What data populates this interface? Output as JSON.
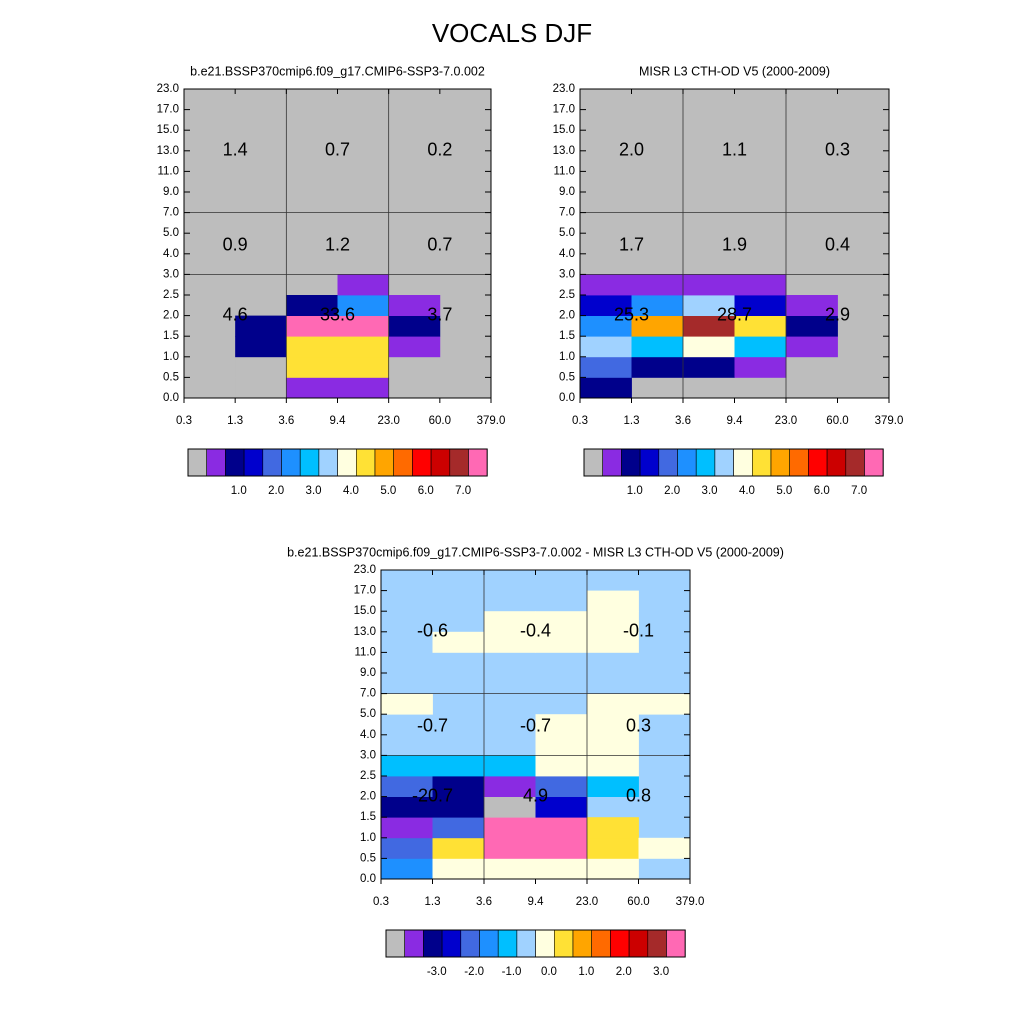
{
  "figure": {
    "title": "VOCALS DJF"
  },
  "palette": [
    "#bdbdbd",
    "#8a2be2",
    "#00008b",
    "#0000cd",
    "#4169e1",
    "#1e90ff",
    "#00bfff",
    "#a0d2ff",
    "#ffffe0",
    "#ffe135",
    "#ffa500",
    "#ff6a00",
    "#ff0000",
    "#cc0000",
    "#a52a2a",
    "#ff69b4"
  ],
  "chart_data": [
    {
      "type": "heatmap",
      "title": "b.e21.BSSP370cmip6.f09_g17.CMIP6-SSP3-7.0.002",
      "x_tick_labels": [
        "0.3",
        "1.3",
        "3.6",
        "9.4",
        "23.0",
        "60.0",
        "379.0"
      ],
      "y_tick_labels": [
        "0.0",
        "0.5",
        "1.0",
        "1.5",
        "2.0",
        "2.5",
        "3.0",
        "4.0",
        "5.0",
        "7.0",
        "9.0",
        "11.0",
        "13.0",
        "15.0",
        "17.0",
        "23.0"
      ],
      "colorbar_labels": [
        "1.0",
        "2.0",
        "3.0",
        "4.0",
        "5.0",
        "6.0",
        "7.0"
      ],
      "grid_x_boundaries": [
        "1.3",
        "3.6",
        "9.4",
        "23.0",
        "60.0"
      ],
      "grid_y_boundaries": [
        "3.0",
        "7.0"
      ],
      "grid_color": "black",
      "cells": [
        {
          "x": 1,
          "y": 0,
          "c": 0
        },
        {
          "x": 1,
          "y": 1,
          "c": 0
        },
        {
          "x": 1,
          "y": 2,
          "c": 2
        },
        {
          "x": 1,
          "y": 3,
          "c": 2
        },
        {
          "x": 2,
          "y": 0,
          "c": 1
        },
        {
          "x": 2,
          "y": 1,
          "c": 9
        },
        {
          "x": 2,
          "y": 2,
          "c": 9
        },
        {
          "x": 2,
          "y": 3,
          "c": 15
        },
        {
          "x": 2,
          "y": 4,
          "c": 2
        },
        {
          "x": 3,
          "y": 0,
          "c": 1
        },
        {
          "x": 3,
          "y": 1,
          "c": 9
        },
        {
          "x": 3,
          "y": 2,
          "c": 9
        },
        {
          "x": 3,
          "y": 3,
          "c": 15
        },
        {
          "x": 3,
          "y": 4,
          "c": 5
        },
        {
          "x": 3,
          "y": 5,
          "c": 1
        },
        {
          "x": 4,
          "y": 2,
          "c": 1
        },
        {
          "x": 4,
          "y": 3,
          "c": 2
        },
        {
          "x": 4,
          "y": 4,
          "c": 1
        }
      ],
      "sums": [
        {
          "label": "1.4",
          "xc": 1,
          "yr": 2
        },
        {
          "label": "0.7",
          "xc": 3,
          "yr": 2
        },
        {
          "label": "0.2",
          "xc": 5,
          "yr": 2
        },
        {
          "label": "0.9",
          "xc": 1,
          "yr": 1
        },
        {
          "label": "1.2",
          "xc": 3,
          "yr": 1
        },
        {
          "label": "0.7",
          "xc": 5,
          "yr": 1
        },
        {
          "label": "4.6",
          "xc": 1,
          "yr": 0
        },
        {
          "label": "33.6",
          "xc": 3,
          "yr": 0
        },
        {
          "label": "3.7",
          "xc": 5,
          "yr": 0
        }
      ]
    },
    {
      "type": "heatmap",
      "title": "MISR L3 CTH-OD V5 (2000-2009)",
      "x_tick_labels": [
        "0.3",
        "1.3",
        "3.6",
        "9.4",
        "23.0",
        "60.0",
        "379.0"
      ],
      "y_tick_labels": [
        "0.0",
        "0.5",
        "1.0",
        "1.5",
        "2.0",
        "2.5",
        "3.0",
        "4.0",
        "5.0",
        "7.0",
        "9.0",
        "11.0",
        "13.0",
        "15.0",
        "17.0",
        "23.0"
      ],
      "colorbar_labels": [
        "1.0",
        "2.0",
        "3.0",
        "4.0",
        "5.0",
        "6.0",
        "7.0"
      ],
      "grid_x_boundaries": [
        "1.3",
        "3.6",
        "9.4",
        "23.0",
        "60.0"
      ],
      "grid_y_boundaries": [
        "3.0",
        "7.0"
      ],
      "grid_color": "black",
      "cells": [
        {
          "x": 0,
          "y": 0,
          "c": 2
        },
        {
          "x": 0,
          "y": 1,
          "c": 4
        },
        {
          "x": 0,
          "y": 2,
          "c": 7
        },
        {
          "x": 0,
          "y": 3,
          "c": 5
        },
        {
          "x": 0,
          "y": 4,
          "c": 3
        },
        {
          "x": 0,
          "y": 5,
          "c": 1
        },
        {
          "x": 1,
          "y": 1,
          "c": 2
        },
        {
          "x": 1,
          "y": 2,
          "c": 6
        },
        {
          "x": 1,
          "y": 3,
          "c": 10
        },
        {
          "x": 1,
          "y": 4,
          "c": 5
        },
        {
          "x": 1,
          "y": 5,
          "c": 1
        },
        {
          "x": 2,
          "y": 1,
          "c": 2
        },
        {
          "x": 2,
          "y": 2,
          "c": 8
        },
        {
          "x": 2,
          "y": 3,
          "c": 14
        },
        {
          "x": 2,
          "y": 4,
          "c": 7
        },
        {
          "x": 2,
          "y": 5,
          "c": 1
        },
        {
          "x": 3,
          "y": 1,
          "c": 1
        },
        {
          "x": 3,
          "y": 2,
          "c": 6
        },
        {
          "x": 3,
          "y": 3,
          "c": 9
        },
        {
          "x": 3,
          "y": 4,
          "c": 3
        },
        {
          "x": 3,
          "y": 5,
          "c": 1
        },
        {
          "x": 4,
          "y": 2,
          "c": 1
        },
        {
          "x": 4,
          "y": 3,
          "c": 2
        },
        {
          "x": 4,
          "y": 4,
          "c": 1
        }
      ],
      "sums": [
        {
          "label": "2.0",
          "xc": 1,
          "yr": 2
        },
        {
          "label": "1.1",
          "xc": 3,
          "yr": 2
        },
        {
          "label": "0.3",
          "xc": 5,
          "yr": 2
        },
        {
          "label": "1.7",
          "xc": 1,
          "yr": 1
        },
        {
          "label": "1.9",
          "xc": 3,
          "yr": 1
        },
        {
          "label": "0.4",
          "xc": 5,
          "yr": 1
        },
        {
          "label": "25.3",
          "xc": 1,
          "yr": 0
        },
        {
          "label": "28.7",
          "xc": 3,
          "yr": 0
        },
        {
          "label": "2.9",
          "xc": 5,
          "yr": 0
        }
      ]
    },
    {
      "type": "heatmap",
      "title": "b.e21.BSSP370cmip6.f09_g17.CMIP6-SSP3-7.0.002 - MISR L3 CTH-OD V5 (2000-2009)",
      "x_tick_labels": [
        "0.3",
        "1.3",
        "3.6",
        "9.4",
        "23.0",
        "60.0",
        "379.0"
      ],
      "y_tick_labels": [
        "0.0",
        "0.5",
        "1.0",
        "1.5",
        "2.0",
        "2.5",
        "3.0",
        "4.0",
        "5.0",
        "7.0",
        "9.0",
        "11.0",
        "13.0",
        "15.0",
        "17.0",
        "23.0"
      ],
      "colorbar_labels": [
        "-3.0",
        "-2.0",
        "-1.0",
        "0.0",
        "1.0",
        "2.0",
        "3.0"
      ],
      "grid_x_boundaries": [
        "1.3",
        "3.6",
        "9.4",
        "23.0",
        "60.0"
      ],
      "grid_y_boundaries": [
        "3.0",
        "7.0"
      ],
      "grid_color": "black",
      "background_color_index": 7,
      "cells": [
        {
          "x": 0,
          "y": 0,
          "c": 5
        },
        {
          "x": 0,
          "y": 1,
          "c": 4
        },
        {
          "x": 0,
          "y": 2,
          "c": 1
        },
        {
          "x": 0,
          "y": 3,
          "c": 2
        },
        {
          "x": 0,
          "y": 4,
          "c": 4
        },
        {
          "x": 0,
          "y": 5,
          "c": 6
        },
        {
          "x": 0,
          "y": 8,
          "c": 8
        },
        {
          "x": 1,
          "y": 0,
          "c": 8
        },
        {
          "x": 1,
          "y": 1,
          "c": 9
        },
        {
          "x": 1,
          "y": 2,
          "c": 4
        },
        {
          "x": 1,
          "y": 3,
          "c": 2
        },
        {
          "x": 1,
          "y": 4,
          "c": 2
        },
        {
          "x": 1,
          "y": 5,
          "c": 6
        },
        {
          "x": 1,
          "y": 11,
          "c": 8
        },
        {
          "x": 2,
          "y": 0,
          "c": 8
        },
        {
          "x": 2,
          "y": 1,
          "c": 15
        },
        {
          "x": 2,
          "y": 2,
          "c": 15
        },
        {
          "x": 2,
          "y": 3,
          "c": 0
        },
        {
          "x": 2,
          "y": 4,
          "c": 1
        },
        {
          "x": 2,
          "y": 5,
          "c": 6
        },
        {
          "x": 2,
          "y": 11,
          "c": 8
        },
        {
          "x": 2,
          "y": 12,
          "c": 8
        },
        {
          "x": 3,
          "y": 0,
          "c": 8
        },
        {
          "x": 3,
          "y": 1,
          "c": 15
        },
        {
          "x": 3,
          "y": 2,
          "c": 15
        },
        {
          "x": 3,
          "y": 3,
          "c": 3
        },
        {
          "x": 3,
          "y": 4,
          "c": 4
        },
        {
          "x": 3,
          "y": 5,
          "c": 8
        },
        {
          "x": 3,
          "y": 6,
          "c": 8
        },
        {
          "x": 3,
          "y": 7,
          "c": 8
        },
        {
          "x": 3,
          "y": 11,
          "c": 8
        },
        {
          "x": 3,
          "y": 12,
          "c": 8
        },
        {
          "x": 4,
          "y": 0,
          "c": 8
        },
        {
          "x": 4,
          "y": 1,
          "c": 9
        },
        {
          "x": 4,
          "y": 2,
          "c": 9
        },
        {
          "x": 4,
          "y": 4,
          "c": 6
        },
        {
          "x": 4,
          "y": 5,
          "c": 8
        },
        {
          "x": 4,
          "y": 6,
          "c": 8
        },
        {
          "x": 4,
          "y": 7,
          "c": 8
        },
        {
          "x": 4,
          "y": 8,
          "c": 8
        },
        {
          "x": 4,
          "y": 11,
          "c": 8
        },
        {
          "x": 4,
          "y": 12,
          "c": 8
        },
        {
          "x": 4,
          "y": 13,
          "c": 8
        },
        {
          "x": 5,
          "y": 1,
          "c": 8
        },
        {
          "x": 5,
          "y": 8,
          "c": 8
        }
      ],
      "sums": [
        {
          "label": "-0.6",
          "xc": 1,
          "yr": 2
        },
        {
          "label": "-0.4",
          "xc": 3,
          "yr": 2
        },
        {
          "label": "-0.1",
          "xc": 5,
          "yr": 2
        },
        {
          "label": "-0.7",
          "xc": 1,
          "yr": 1
        },
        {
          "label": "-0.7",
          "xc": 3,
          "yr": 1
        },
        {
          "label": "0.3",
          "xc": 5,
          "yr": 1
        },
        {
          "label": "-20.7",
          "xc": 1,
          "yr": 0
        },
        {
          "label": "4.9",
          "xc": 3,
          "yr": 0
        },
        {
          "label": "0.8",
          "xc": 5,
          "yr": 0
        }
      ]
    }
  ]
}
